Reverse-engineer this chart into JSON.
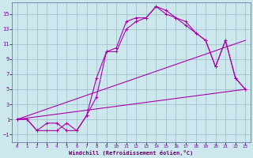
{
  "xlabel": "Windchill (Refroidissement éolien,°C)",
  "bg_color": "#cce8ec",
  "grid_color": "#99bbcc",
  "line_color": "#aa00aa",
  "xlim": [
    -0.5,
    23.5
  ],
  "ylim": [
    -2.0,
    16.5
  ],
  "xticks": [
    0,
    1,
    2,
    3,
    4,
    5,
    6,
    7,
    8,
    9,
    10,
    11,
    12,
    13,
    14,
    15,
    16,
    17,
    18,
    19,
    20,
    21,
    22,
    23
  ],
  "yticks": [
    -1,
    1,
    3,
    5,
    7,
    9,
    11,
    13,
    15
  ],
  "series": [
    {
      "x": [
        0,
        1,
        2,
        3,
        4,
        5,
        6,
        7,
        8,
        9,
        10,
        11,
        12,
        13,
        14,
        15,
        16,
        17,
        18,
        19,
        20,
        21,
        22,
        23
      ],
      "y": [
        1,
        1,
        -0.5,
        -0.5,
        -0.5,
        0.5,
        -0.5,
        1.5,
        6.5,
        10.0,
        10.0,
        13.0,
        14.0,
        14.5,
        16.0,
        15.0,
        14.5,
        14.0,
        12.5,
        11.5,
        8.0,
        11.5,
        6.5,
        5.0
      ],
      "marker": true
    },
    {
      "x": [
        0,
        1,
        2,
        3,
        4,
        5,
        6,
        7,
        8,
        9,
        10,
        11,
        12,
        13,
        14,
        15,
        16,
        17,
        18,
        19,
        20,
        21,
        22,
        23
      ],
      "y": [
        1,
        1,
        -0.5,
        0.5,
        0.5,
        -0.5,
        -0.5,
        1.5,
        4.0,
        10.0,
        10.5,
        14.0,
        14.5,
        14.5,
        16.0,
        15.5,
        14.5,
        13.5,
        12.5,
        11.5,
        8.0,
        11.5,
        6.5,
        5.0
      ],
      "marker": true
    },
    {
      "x": [
        0,
        23
      ],
      "y": [
        1,
        5.0
      ],
      "marker": false
    },
    {
      "x": [
        0,
        23
      ],
      "y": [
        1,
        11.5
      ],
      "marker": false
    }
  ]
}
